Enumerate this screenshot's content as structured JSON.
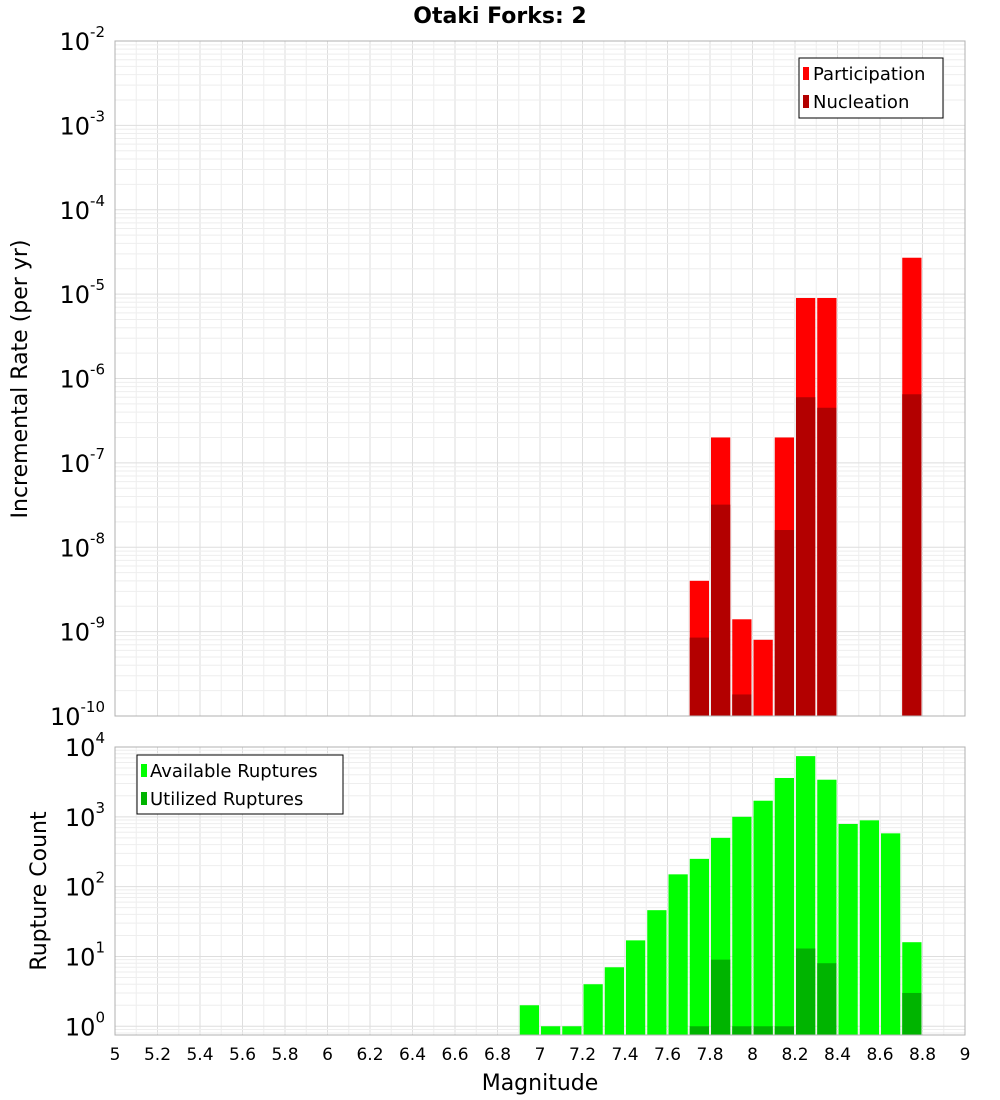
{
  "chart_data": [
    {
      "type": "bar",
      "title": "Otaki Forks: 2",
      "ylabel": "Incremental Rate (per yr)",
      "yscale": "log",
      "ylim": [
        1e-10,
        0.01
      ],
      "xlim": [
        5,
        9
      ],
      "legend_position": "top-right",
      "bar_width": 0.1,
      "series": [
        {
          "name": "Participation",
          "color": "#ff0000",
          "x": [
            7.75,
            7.85,
            7.95,
            8.05,
            8.15,
            8.25,
            8.35,
            8.75
          ],
          "values": [
            4e-09,
            2e-07,
            1.4e-09,
            8e-10,
            2e-07,
            9e-06,
            9e-06,
            2.7e-05
          ]
        },
        {
          "name": "Nucleation",
          "color": "#b30000",
          "x": [
            7.75,
            7.85,
            7.95,
            8.15,
            8.25,
            8.35,
            8.75
          ],
          "values": [
            8.5e-10,
            3.2e-08,
            1.8e-10,
            1.6e-08,
            6e-07,
            4.5e-07,
            6.5e-07
          ]
        }
      ]
    },
    {
      "type": "bar",
      "ylabel": "Rupture Count",
      "xlabel": "Magnitude",
      "yscale": "log",
      "ylim": [
        0.75,
        10000
      ],
      "xlim": [
        5,
        9
      ],
      "legend_position": "top-left",
      "bar_width": 0.1,
      "series": [
        {
          "name": "Available Ruptures",
          "color": "#00ff00",
          "x": [
            6.95,
            7.05,
            7.15,
            7.25,
            7.35,
            7.45,
            7.55,
            7.65,
            7.75,
            7.85,
            7.95,
            8.05,
            8.15,
            8.25,
            8.35,
            8.45,
            8.55,
            8.65,
            8.75
          ],
          "values": [
            2,
            1,
            1,
            4,
            7,
            17,
            46,
            150,
            250,
            500,
            1000,
            1700,
            3600,
            7400,
            3400,
            790,
            890,
            580,
            16
          ]
        },
        {
          "name": "Utilized Ruptures",
          "color": "#00b400",
          "x": [
            7.75,
            7.85,
            7.95,
            8.05,
            8.15,
            8.25,
            8.35,
            8.75
          ],
          "values": [
            1,
            9,
            1,
            1,
            1,
            13,
            8,
            3
          ]
        }
      ]
    }
  ],
  "x_ticks": [
    "5",
    "5.2",
    "5.4",
    "5.6",
    "5.8",
    "6",
    "6.2",
    "6.4",
    "6.6",
    "6.8",
    "7",
    "7.2",
    "7.4",
    "7.6",
    "7.8",
    "8",
    "8.2",
    "8.4",
    "8.6",
    "8.8",
    "9"
  ],
  "top_y_ticks": [
    {
      "base": "10",
      "exp": "-2",
      "value": 0.01
    },
    {
      "base": "10",
      "exp": "-3",
      "value": 0.001
    },
    {
      "base": "10",
      "exp": "-4",
      "value": 0.0001
    },
    {
      "base": "10",
      "exp": "-5",
      "value": 1e-05
    },
    {
      "base": "10",
      "exp": "-6",
      "value": 1e-06
    },
    {
      "base": "10",
      "exp": "-7",
      "value": 1e-07
    },
    {
      "base": "10",
      "exp": "-8",
      "value": 1e-08
    },
    {
      "base": "10",
      "exp": "-9",
      "value": 1e-09
    },
    {
      "base": "10",
      "exp": "-10",
      "value": 1e-10
    }
  ],
  "bottom_y_ticks": [
    {
      "base": "10",
      "exp": "4",
      "value": 10000
    },
    {
      "base": "10",
      "exp": "3",
      "value": 1000
    },
    {
      "base": "10",
      "exp": "2",
      "value": 100
    },
    {
      "base": "10",
      "exp": "1",
      "value": 10
    },
    {
      "base": "10",
      "exp": "0",
      "value": 1
    }
  ]
}
